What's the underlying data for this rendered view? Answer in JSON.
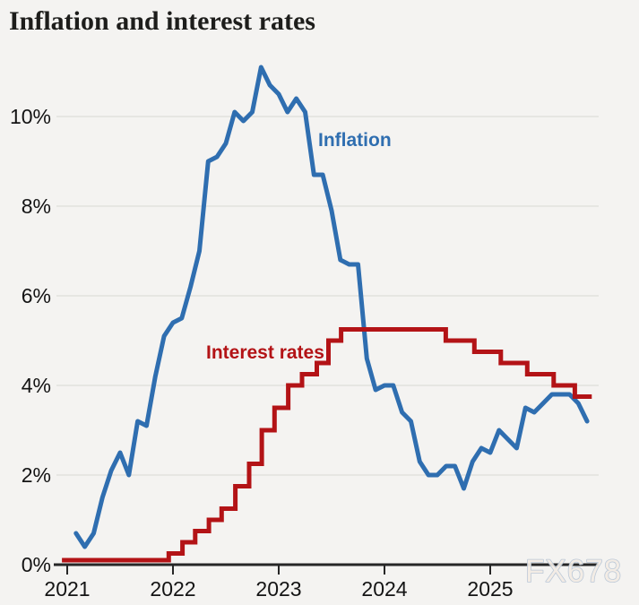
{
  "title": "Inflation and interest rates",
  "watermark": "FX678",
  "colors": {
    "background": "#f4f3f1",
    "gridline": "#e2e1de",
    "axis": "#262626",
    "tick_label": "#141414",
    "title_text": "#1d1d1b",
    "inflation_blue": "#2f6eb0",
    "interest_red": "#b31316",
    "watermark_fill": "#f3ece4",
    "watermark_stroke": "#b7c5d6"
  },
  "chart_data": {
    "type": "line",
    "title": "Inflation and interest rates",
    "legend_position": "inline-labels-on-chart",
    "x_axis": {
      "tick_years": [
        2021,
        2022,
        2023,
        2024,
        2025
      ],
      "tick_labels": [
        "2021",
        "2022",
        "2023",
        "2024",
        "2025"
      ],
      "range": [
        2020.95,
        2026.0
      ]
    },
    "y_axis": {
      "tick_values": [
        0,
        2,
        4,
        6,
        8,
        10
      ],
      "tick_labels": [
        "0%",
        "2%",
        "4%",
        "6%",
        "8%",
        "10%"
      ],
      "range": [
        0,
        11.6
      ],
      "gridlines": true,
      "unit": "percent"
    },
    "series": [
      {
        "name": "Inflation",
        "type": "monthly-line",
        "color": "#2f6eb0",
        "x_start_year": 2021.083,
        "x_step_years": 0.08333,
        "values": [
          0.7,
          0.4,
          0.7,
          1.5,
          2.1,
          2.5,
          2.0,
          3.2,
          3.1,
          4.2,
          5.1,
          5.4,
          5.5,
          6.2,
          7.0,
          9.0,
          9.1,
          9.4,
          10.1,
          9.9,
          10.1,
          11.1,
          10.7,
          10.5,
          10.1,
          10.4,
          10.1,
          8.7,
          8.7,
          7.9,
          6.8,
          6.7,
          6.7,
          4.6,
          3.9,
          4.0,
          4.0,
          3.4,
          3.2,
          2.3,
          2.0,
          2.0,
          2.2,
          2.2,
          1.7,
          2.3,
          2.6,
          2.5,
          3.0,
          2.8,
          2.6,
          3.5,
          3.4,
          3.6,
          3.8,
          3.8,
          3.8,
          3.6,
          3.2
        ]
      },
      {
        "name": "Interest rates",
        "type": "step-line",
        "color": "#b31316",
        "x_end_year": 2025.96,
        "steps": [
          {
            "x": 2020.95,
            "v": 0.1
          },
          {
            "x": 2021.96,
            "v": 0.25
          },
          {
            "x": 2022.09,
            "v": 0.5
          },
          {
            "x": 2022.21,
            "v": 0.75
          },
          {
            "x": 2022.34,
            "v": 1.0
          },
          {
            "x": 2022.46,
            "v": 1.25
          },
          {
            "x": 2022.59,
            "v": 1.75
          },
          {
            "x": 2022.72,
            "v": 2.25
          },
          {
            "x": 2022.84,
            "v": 3.0
          },
          {
            "x": 2022.96,
            "v": 3.5
          },
          {
            "x": 2023.09,
            "v": 4.0
          },
          {
            "x": 2023.22,
            "v": 4.25
          },
          {
            "x": 2023.36,
            "v": 4.5
          },
          {
            "x": 2023.47,
            "v": 5.0
          },
          {
            "x": 2023.59,
            "v": 5.25
          },
          {
            "x": 2024.58,
            "v": 5.0
          },
          {
            "x": 2024.85,
            "v": 4.75
          },
          {
            "x": 2025.1,
            "v": 4.5
          },
          {
            "x": 2025.35,
            "v": 4.25
          },
          {
            "x": 2025.6,
            "v": 4.0
          },
          {
            "x": 2025.8,
            "v": 3.75
          }
        ]
      }
    ],
    "annotations": [
      {
        "text": "Inflation",
        "color": "#2f6eb0"
      },
      {
        "text": "Interest rates",
        "color": "#b31316"
      }
    ]
  }
}
